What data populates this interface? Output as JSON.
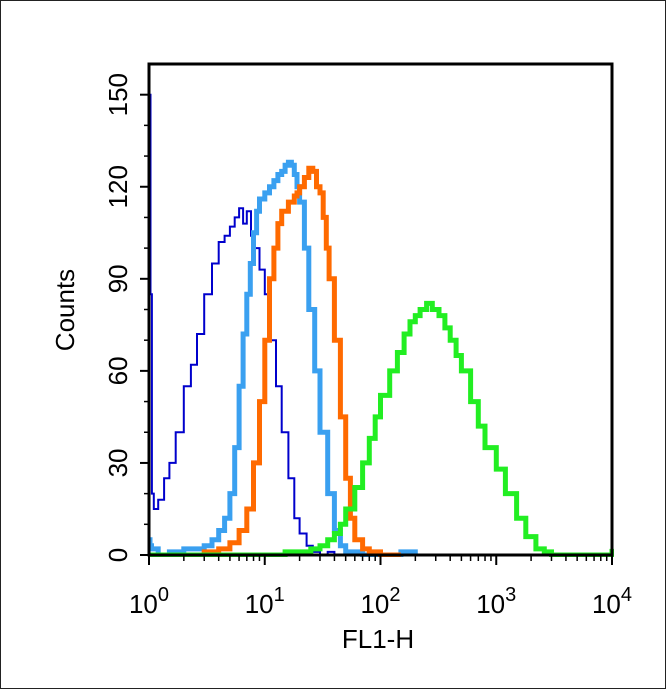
{
  "chart_data": {
    "type": "line",
    "title": "",
    "xlabel": "FL1-H",
    "ylabel": "Counts",
    "x_scale": "log",
    "xlim": [
      1,
      10000
    ],
    "ylim": [
      0,
      160
    ],
    "x_ticks": [
      {
        "value": 1,
        "base": "10",
        "exp": "0"
      },
      {
        "value": 10,
        "base": "10",
        "exp": "1"
      },
      {
        "value": 100,
        "base": "10",
        "exp": "2"
      },
      {
        "value": 1000,
        "base": "10",
        "exp": "3"
      },
      {
        "value": 10000,
        "base": "10",
        "exp": "4"
      }
    ],
    "y_ticks": [
      "0",
      "30",
      "60",
      "90",
      "120",
      "150"
    ],
    "grid": false,
    "legend": "none",
    "series": [
      {
        "color": "#0000cc",
        "stroke": "thin",
        "x": [
          1.0,
          1.01,
          1.03,
          1.06,
          1.1,
          1.2,
          1.35,
          1.5,
          1.7,
          2.0,
          2.3,
          2.6,
          3.0,
          3.5,
          4.0,
          4.5,
          5.0,
          5.5,
          6.0,
          6.5,
          7.0,
          7.6,
          8.2,
          9.0,
          10.0,
          11.0,
          12.5,
          14.0,
          16.0,
          18.0,
          20.0,
          23.0,
          26.0,
          30.0,
          35.0,
          40.0,
          50.0,
          60.0
        ],
        "y": [
          150,
          150,
          85,
          20,
          15,
          18,
          25,
          30,
          40,
          55,
          62,
          72,
          85,
          95,
          102,
          104,
          107,
          110,
          113,
          108,
          112,
          104,
          100,
          93,
          85,
          70,
          55,
          40,
          25,
          12,
          7,
          3,
          1,
          0,
          1,
          0,
          0,
          0
        ]
      },
      {
        "color": "#3aa0f0",
        "stroke": "thick",
        "x": [
          1.0,
          1.02,
          1.05,
          1.2,
          1.5,
          2.0,
          2.5,
          3.0,
          3.5,
          4.0,
          4.5,
          5.0,
          5.5,
          6.0,
          6.5,
          7.0,
          7.5,
          8.0,
          8.5,
          9.0,
          10.0,
          11.0,
          12.0,
          13.0,
          14.0,
          15.0,
          16.0,
          17.0,
          18.0,
          19.0,
          20.0,
          22.0,
          24.0,
          27.0,
          30.0,
          35.0,
          40.0,
          45.0,
          50.0,
          60.0,
          70.0,
          100.0,
          150.0,
          200.0
        ],
        "y": [
          5,
          3,
          2,
          0,
          1,
          2,
          2,
          3,
          5,
          8,
          12,
          20,
          35,
          55,
          72,
          85,
          95,
          105,
          112,
          116,
          118,
          120,
          122,
          124,
          125,
          127,
          128,
          127,
          124,
          120,
          115,
          100,
          80,
          60,
          40,
          20,
          8,
          3,
          1,
          1,
          0,
          0,
          1,
          0
        ]
      },
      {
        "color": "#ff6a00",
        "stroke": "thick",
        "x": [
          1.0,
          1.5,
          2.0,
          3.0,
          4.0,
          5.0,
          6.0,
          7.0,
          8.0,
          9.0,
          10.0,
          11.0,
          12.0,
          13.0,
          14.0,
          16.0,
          18.0,
          19.0,
          20.0,
          22.0,
          24.0,
          26.0,
          28.0,
          30.0,
          32.0,
          34.0,
          36.0,
          40.0,
          45.0,
          50.0,
          55.0,
          60.0,
          70.0,
          80.0,
          100.0,
          150.0
        ],
        "y": [
          0,
          0,
          0,
          1,
          2,
          4,
          8,
          15,
          30,
          50,
          70,
          90,
          100,
          108,
          112,
          115,
          117,
          118,
          120,
          123,
          126,
          125,
          120,
          118,
          110,
          100,
          90,
          70,
          45,
          25,
          12,
          5,
          2,
          1,
          0,
          0
        ]
      },
      {
        "color": "#22ee22",
        "stroke": "thick",
        "x": [
          1.0,
          3.0,
          8.0,
          15.0,
          20.0,
          25.0,
          30.0,
          35.0,
          40.0,
          45.0,
          50.0,
          60.0,
          70.0,
          80.0,
          90.0,
          100.0,
          120.0,
          140.0,
          160.0,
          180.0,
          200.0,
          220.0,
          250.0,
          280.0,
          320.0,
          360.0,
          400.0,
          450.0,
          500.0,
          600.0,
          700.0,
          800.0,
          1000.0,
          1200.0,
          1500.0,
          1800.0,
          2200.0,
          2600.0,
          3000.0,
          4000.0,
          6000.0,
          9000.0,
          10000.0
        ],
        "y": [
          0,
          0,
          0,
          1,
          1,
          2,
          3,
          5,
          7,
          10,
          15,
          22,
          30,
          38,
          45,
          52,
          60,
          66,
          72,
          76,
          78,
          80,
          82,
          80,
          78,
          74,
          70,
          65,
          60,
          50,
          42,
          35,
          28,
          20,
          12,
          6,
          2,
          1,
          0,
          0,
          0,
          0,
          2
        ]
      }
    ]
  }
}
